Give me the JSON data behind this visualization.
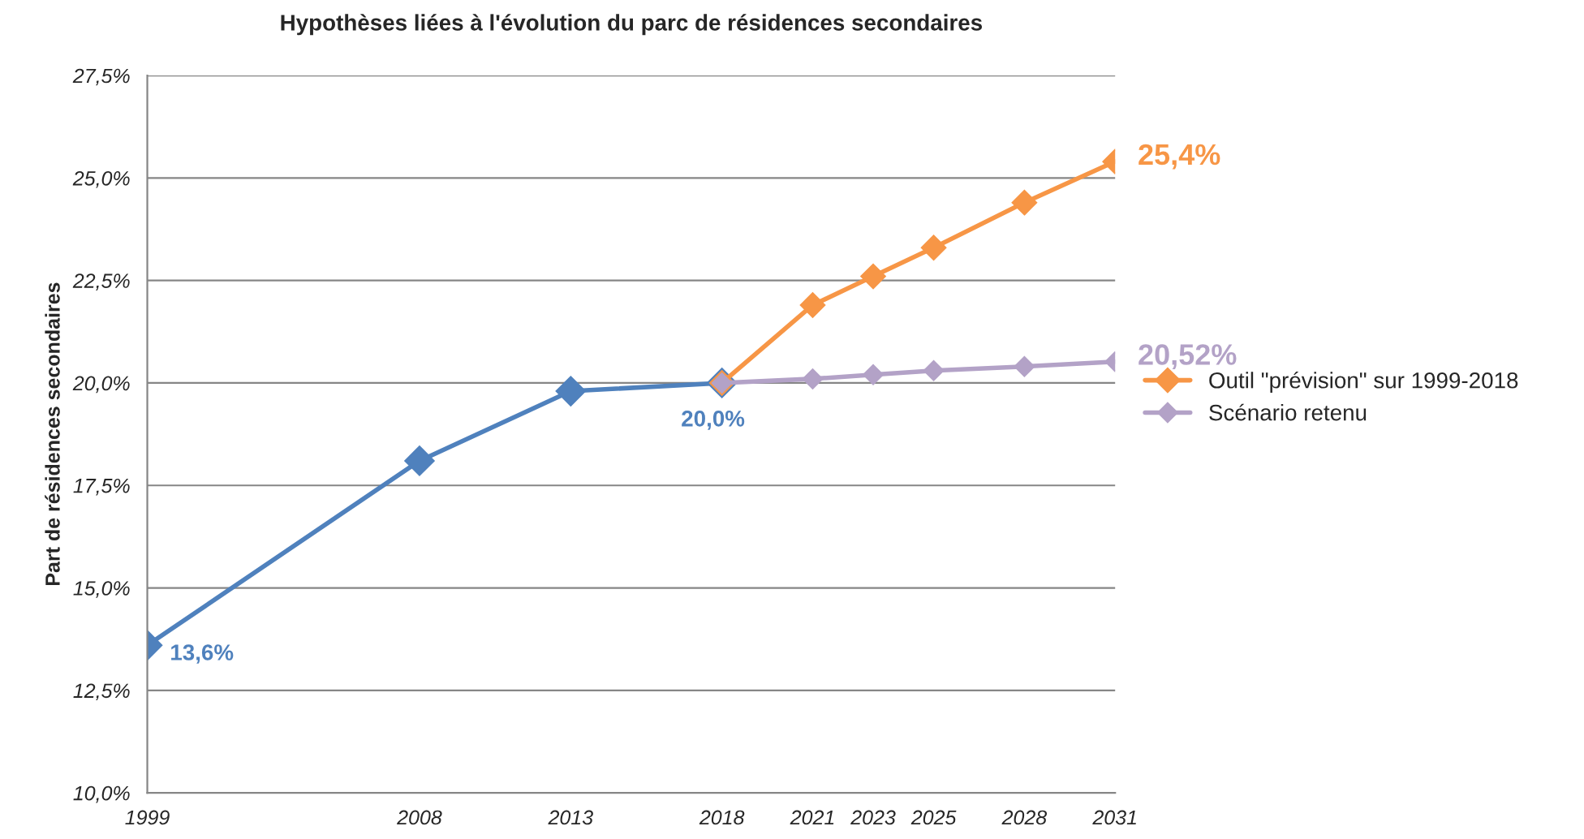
{
  "chart_data": {
    "type": "line",
    "title": "Hypothèses liées à l'évolution du parc de résidences secondaires",
    "ylabel": "Part de résidences secondaires",
    "x": [
      1999,
      2008,
      2013,
      2018
    ],
    "series": [
      {
        "color": "#4f81bd",
        "values": [
          13.6,
          18.1,
          19.8,
          20.0
        ],
        "value_labels": [
          "13,6%",
          null,
          null,
          "20,0%"
        ]
      },
      {
        "name": "Outil \"prévision\" sur 1999-2018",
        "color": "#f79646",
        "x": [
          2018,
          2021,
          2023,
          2025,
          2028,
          2031
        ],
        "values": [
          20.0,
          21.9,
          22.6,
          23.3,
          24.4,
          25.4
        ],
        "value_labels": [
          null,
          null,
          null,
          null,
          null,
          "25,4%"
        ]
      },
      {
        "name": "Scénario retenu",
        "color": "#b3a2c7",
        "x": [
          2018,
          2021,
          2023,
          2025,
          2028,
          2031
        ],
        "values": [
          20.0,
          20.1,
          20.2,
          20.3,
          20.4,
          20.52
        ],
        "value_labels": [
          null,
          null,
          null,
          null,
          null,
          "20,52%"
        ]
      }
    ],
    "xlim": [
      1999,
      2031
    ],
    "xticks": [
      1999,
      2008,
      2013,
      2018,
      2021,
      2023,
      2025,
      2028,
      2031
    ],
    "ylim": [
      10,
      27.5
    ],
    "yticks": [
      {
        "value": 10,
        "label": "10,0%"
      },
      {
        "value": 12.5,
        "label": "12,5%"
      },
      {
        "value": 15,
        "label": "15,0%"
      },
      {
        "value": 17.5,
        "label": "17,5%"
      },
      {
        "value": 20,
        "label": "20,0%"
      },
      {
        "value": 22.5,
        "label": "22,5%"
      },
      {
        "value": 25,
        "label": "25,0%"
      },
      {
        "value": 27.5,
        "label": "27,5%"
      }
    ],
    "grid": "y",
    "legend": "right",
    "marker": "diamond",
    "line_style": "solid"
  }
}
